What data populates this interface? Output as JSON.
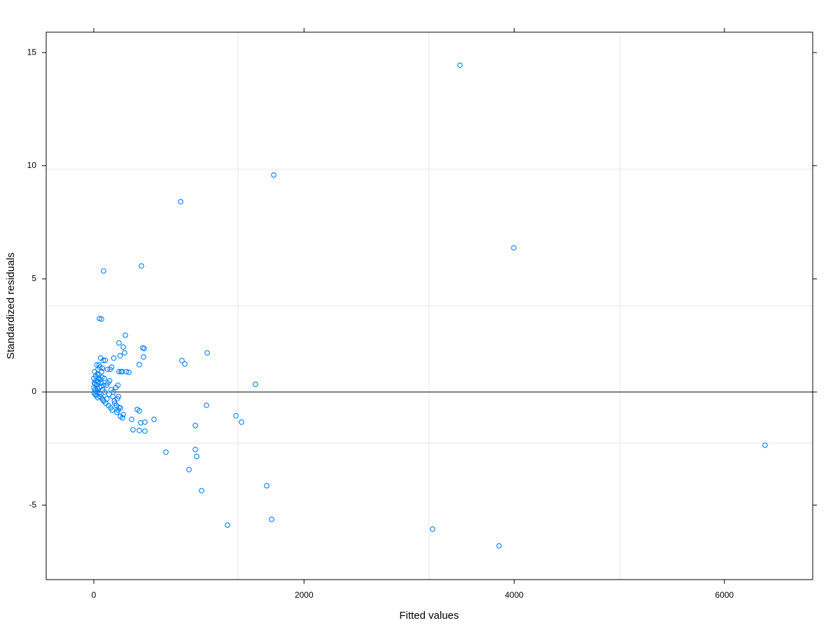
{
  "chart_data": {
    "type": "scatter",
    "x_label": "Fitted values",
    "y_label": "Standardized residuals",
    "xlim": [
      -453,
      6840
    ],
    "ylim": [
      -8.29,
      15.9
    ],
    "xticks": [
      0,
      2000,
      4000,
      6000
    ],
    "yticks": [
      -5,
      0,
      5,
      10,
      15
    ],
    "x_gridlines": [
      1372,
      3190,
      5008
    ],
    "y_gridlines": [
      -2.26,
      3.8,
      9.84
    ],
    "hline": 0,
    "color": "#0080ff",
    "x": [
      3483,
      1712,
      826,
      3996,
      93,
      453,
      53,
      73,
      300,
      240,
      280,
      466,
      480,
      293,
      1079,
      473,
      839,
      866,
      433,
      333,
      1538,
      1072,
      1352,
      1405,
      573,
      360,
      486,
      446,
      373,
      433,
      486,
      966,
      686,
      966,
      979,
      906,
      1026,
      1645,
      1272,
      1692,
      3223,
      3856,
      6387,
      413,
      433,
      253,
      273,
      240,
      253,
      0,
      5,
      10,
      15,
      20,
      25,
      30,
      35,
      40,
      45,
      50,
      55,
      60,
      65,
      70,
      75,
      80,
      85,
      90,
      95,
      100,
      110,
      115,
      120,
      130,
      140,
      150,
      160,
      170,
      180,
      190,
      200,
      210,
      220,
      230,
      235,
      240,
      250,
      260,
      270,
      280,
      310,
      0,
      3,
      8,
      12,
      18,
      22,
      28,
      33,
      38,
      42,
      48,
      52,
      58,
      62,
      68,
      72,
      78,
      82,
      88,
      92,
      105,
      125,
      135,
      145,
      155,
      165,
      175,
      185,
      195,
      215,
      225,
      230
    ],
    "values": [
      14.44,
      9.59,
      8.41,
      6.37,
      5.35,
      5.57,
      3.25,
      3.22,
      2.51,
      2.17,
      1.98,
      1.95,
      1.92,
      1.73,
      1.73,
      1.55,
      1.39,
      1.24,
      1.21,
      0.87,
      0.34,
      -0.59,
      -1.05,
      -1.33,
      -1.21,
      -1.21,
      -1.33,
      -1.36,
      -1.67,
      -1.7,
      -1.73,
      -1.48,
      -2.66,
      -2.54,
      -2.85,
      -3.43,
      -4.36,
      -4.14,
      -5.88,
      -5.63,
      -6.06,
      -6.8,
      -2.35,
      -0.77,
      -0.84,
      -1.08,
      -1.14,
      -0.68,
      -0.71,
      0.2,
      0.4,
      0.1,
      -0.1,
      0.5,
      0.3,
      0.0,
      0.8,
      1.0,
      0.6,
      1.2,
      0.2,
      -0.2,
      1.5,
      0.4,
      0.9,
      -0.3,
      0.1,
      1.4,
      -0.4,
      0.6,
      1.4,
      -0.5,
      0.3,
      1.0,
      -0.6,
      0.5,
      -0.7,
      1.1,
      -0.2,
      1.5,
      -0.5,
      0.2,
      -0.9,
      0.3,
      -0.2,
      0.9,
      1.6,
      0.9,
      0.9,
      -1.0,
      0.9,
      0.6,
      -0.05,
      0.9,
      0.35,
      0.7,
      -0.15,
      1.2,
      0.15,
      -0.25,
      0.45,
      0.75,
      -0.05,
      1.1,
      0.55,
      -0.1,
      0.25,
      0.65,
      1.05,
      -0.35,
      0.3,
      0.0,
      -0.3,
      0.4,
      -0.1,
      1.0,
      0.1,
      -0.8,
      0.0,
      -0.4,
      -0.6,
      -0.3,
      -0.8
    ]
  }
}
